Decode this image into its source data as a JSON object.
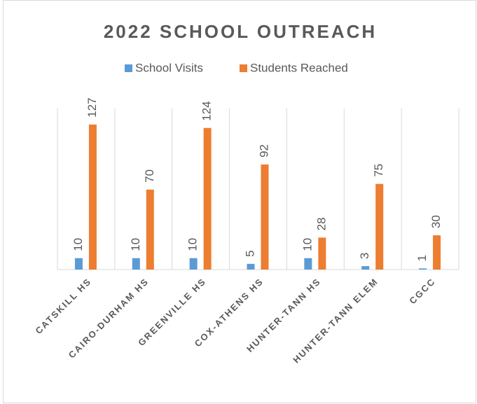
{
  "chart_data": {
    "type": "bar",
    "title": "2022 SCHOOL OUTREACH",
    "categories": [
      "CATSKILL HS",
      "CAIRO-DURHAM HS",
      "GREENVILLE HS",
      "COX-ATHENS HS",
      "HUNTER-TANN HS",
      "HUNTER-TANN ELEM",
      "CGCC"
    ],
    "series": [
      {
        "name": "School Visits",
        "color": "#5b9bd5",
        "values": [
          10,
          10,
          10,
          5,
          10,
          3,
          1
        ]
      },
      {
        "name": "Students Reached",
        "color": "#ed7d31",
        "values": [
          127,
          70,
          124,
          92,
          28,
          75,
          30
        ]
      }
    ],
    "ylim": [
      0,
      141
    ],
    "legend": "top",
    "grid": false
  }
}
